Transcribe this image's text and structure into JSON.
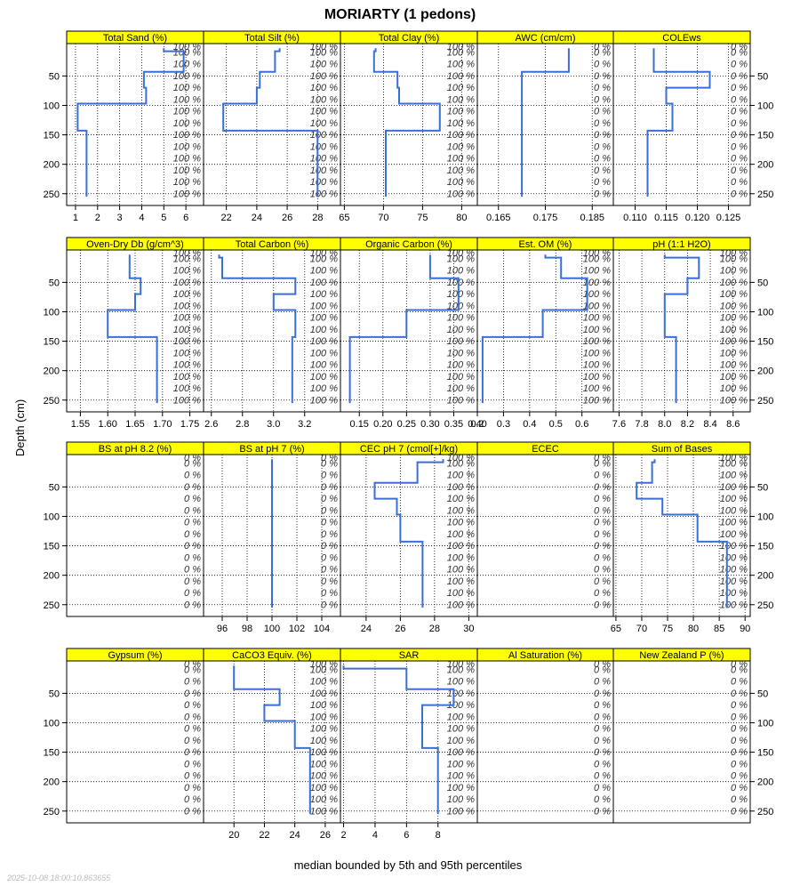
{
  "chart_data": {
    "type": "line",
    "title": "MORIARTY (1 pedons)",
    "ylabel": "Depth (cm)",
    "xlabel": "median bounded by 5th and 95th percentiles",
    "timestamp": "2025-10-08 18:00:10.863655",
    "grid": true,
    "depth_range": [
      270,
      -5
    ],
    "depth_ticks": [
      50,
      100,
      150,
      200,
      250
    ],
    "slice_depths": [
      0,
      10,
      30,
      50,
      70,
      90,
      110,
      130,
      150,
      170,
      190,
      210,
      230,
      250
    ],
    "colors": {
      "line": "#3b6fd8",
      "strip": "#ffff00",
      "grid": "#000000",
      "text": "#000000"
    },
    "panels": [
      {
        "name": "Total Sand (%)",
        "xlim": [
          0.6,
          6.8
        ],
        "ticks": [
          1,
          2,
          3,
          4,
          5,
          6
        ],
        "tick_labels": [
          "1",
          "2",
          "3",
          "4",
          "5",
          "6"
        ],
        "pct": "100 %",
        "line": [
          [
            5.0,
            3
          ],
          [
            5.0,
            8
          ],
          [
            5.9,
            8
          ],
          [
            5.9,
            43
          ],
          [
            4.1,
            43
          ],
          [
            4.1,
            70
          ],
          [
            4.2,
            70
          ],
          [
            4.2,
            97
          ],
          [
            1.1,
            97
          ],
          [
            1.1,
            143
          ],
          [
            1.5,
            143
          ],
          [
            1.5,
            255
          ]
        ]
      },
      {
        "name": "Total Silt (%)",
        "xlim": [
          20.5,
          29.5
        ],
        "ticks": [
          22,
          24,
          26,
          28
        ],
        "tick_labels": [
          "22",
          "24",
          "26",
          "28"
        ],
        "pct": "100 %",
        "line": [
          [
            25.5,
            3
          ],
          [
            25.5,
            8
          ],
          [
            25.2,
            8
          ],
          [
            25.2,
            43
          ],
          [
            24.2,
            43
          ],
          [
            24.2,
            70
          ],
          [
            24.0,
            70
          ],
          [
            24.0,
            97
          ],
          [
            21.8,
            97
          ],
          [
            21.8,
            143
          ],
          [
            28.0,
            143
          ],
          [
            28.0,
            255
          ]
        ]
      },
      {
        "name": "Total Clay (%)",
        "xlim": [
          64.5,
          82
        ],
        "ticks": [
          65,
          70,
          75,
          80
        ],
        "tick_labels": [
          "65",
          "70",
          "75",
          "80"
        ],
        "pct": "100 %",
        "line": [
          [
            69.0,
            3
          ],
          [
            69.0,
            8
          ],
          [
            68.8,
            8
          ],
          [
            68.8,
            43
          ],
          [
            71.8,
            43
          ],
          [
            71.8,
            70
          ],
          [
            72.0,
            70
          ],
          [
            72.0,
            97
          ],
          [
            77.2,
            97
          ],
          [
            77.2,
            143
          ],
          [
            70.3,
            143
          ],
          [
            70.3,
            255
          ]
        ]
      },
      {
        "name": "AWC (cm/cm)",
        "xlim": [
          0.1605,
          0.1895
        ],
        "ticks": [
          0.165,
          0.175,
          0.185
        ],
        "tick_labels": [
          "0.165",
          "0.175",
          "0.185"
        ],
        "pct": "0 %",
        "line": [
          [
            0.18,
            3
          ],
          [
            0.18,
            43
          ],
          [
            0.17,
            43
          ],
          [
            0.17,
            255
          ]
        ]
      },
      {
        "name": "COLEws",
        "xlim": [
          0.1065,
          0.1285
        ],
        "ticks": [
          0.11,
          0.115,
          0.12,
          0.125
        ],
        "tick_labels": [
          "0.110",
          "0.115",
          "0.120",
          "0.125"
        ],
        "pct": "0 %",
        "line": [
          [
            0.113,
            3
          ],
          [
            0.113,
            43
          ],
          [
            0.122,
            43
          ],
          [
            0.122,
            70
          ],
          [
            0.115,
            70
          ],
          [
            0.115,
            97
          ],
          [
            0.116,
            97
          ],
          [
            0.116,
            143
          ],
          [
            0.112,
            143
          ],
          [
            0.112,
            255
          ]
        ]
      },
      {
        "name": "Oven-Dry Db (g/cm^3)",
        "xlim": [
          1.525,
          1.775
        ],
        "ticks": [
          1.55,
          1.6,
          1.65,
          1.7,
          1.75
        ],
        "tick_labels": [
          "1.55",
          "1.60",
          "1.65",
          "1.70",
          "1.75"
        ],
        "pct": "100 %",
        "line": [
          [
            1.64,
            3
          ],
          [
            1.64,
            43
          ],
          [
            1.66,
            43
          ],
          [
            1.66,
            70
          ],
          [
            1.65,
            70
          ],
          [
            1.65,
            97
          ],
          [
            1.6,
            97
          ],
          [
            1.6,
            143
          ],
          [
            1.69,
            143
          ],
          [
            1.69,
            255
          ]
        ]
      },
      {
        "name": "Total Carbon (%)",
        "xlim": [
          2.55,
          3.43
        ],
        "ticks": [
          2.6,
          2.8,
          3.0,
          3.2
        ],
        "tick_labels": [
          "2.6",
          "2.8",
          "3.0",
          "3.2"
        ],
        "pct": "100 %",
        "line": [
          [
            2.65,
            3
          ],
          [
            2.65,
            8
          ],
          [
            2.67,
            8
          ],
          [
            2.67,
            43
          ],
          [
            3.14,
            43
          ],
          [
            3.14,
            70
          ],
          [
            3.0,
            70
          ],
          [
            3.0,
            97
          ],
          [
            3.14,
            97
          ],
          [
            3.14,
            143
          ],
          [
            3.12,
            143
          ],
          [
            3.12,
            255
          ]
        ]
      },
      {
        "name": "Organic Carbon (%)",
        "xlim": [
          0.11,
          0.4
        ],
        "ticks": [
          0.15,
          0.2,
          0.25,
          0.3,
          0.35,
          0.4
        ],
        "tick_labels": [
          "0.15",
          "0.20",
          "0.25",
          "0.30",
          "0.35",
          "0.40"
        ],
        "pct": "100 %",
        "line": [
          [
            0.3,
            3
          ],
          [
            0.3,
            43
          ],
          [
            0.36,
            43
          ],
          [
            0.36,
            97
          ],
          [
            0.25,
            97
          ],
          [
            0.25,
            143
          ],
          [
            0.13,
            143
          ],
          [
            0.13,
            255
          ]
        ]
      },
      {
        "name": "Est. OM (%)",
        "xlim": [
          0.2,
          0.72
        ],
        "ticks": [
          0.2,
          0.3,
          0.4,
          0.5,
          0.6
        ],
        "tick_labels": [
          "0.2",
          "0.3",
          "0.4",
          "0.5",
          "0.6"
        ],
        "pct": "100 %",
        "line": [
          [
            0.46,
            3
          ],
          [
            0.46,
            8
          ],
          [
            0.52,
            8
          ],
          [
            0.52,
            43
          ],
          [
            0.62,
            43
          ],
          [
            0.62,
            97
          ],
          [
            0.45,
            97
          ],
          [
            0.45,
            143
          ],
          [
            0.22,
            143
          ],
          [
            0.22,
            255
          ]
        ]
      },
      {
        "name": "pH (1:1 H2O)",
        "xlim": [
          7.55,
          8.75
        ],
        "ticks": [
          7.6,
          7.8,
          8.0,
          8.2,
          8.4,
          8.6
        ],
        "tick_labels": [
          "7.6",
          "7.8",
          "8.0",
          "8.2",
          "8.4",
          "8.6"
        ],
        "pct": "100 %",
        "line": [
          [
            8.0,
            3
          ],
          [
            8.0,
            8
          ],
          [
            8.3,
            8
          ],
          [
            8.3,
            43
          ],
          [
            8.2,
            43
          ],
          [
            8.2,
            70
          ],
          [
            8.0,
            70
          ],
          [
            8.0,
            143
          ],
          [
            8.1,
            143
          ],
          [
            8.1,
            255
          ]
        ]
      },
      {
        "name": "BS at pH 8.2 (%)",
        "xlim": [
          0,
          1
        ],
        "ticks": [],
        "tick_labels": [],
        "pct": "0 %",
        "line": []
      },
      {
        "name": "BS at pH 7 (%)",
        "xlim": [
          94.5,
          105.5
        ],
        "ticks": [
          96,
          98,
          100,
          102,
          104
        ],
        "tick_labels": [
          "96",
          "98",
          "100",
          "102",
          "104"
        ],
        "pct": "0 %",
        "line": [
          [
            100,
            3
          ],
          [
            100,
            255
          ]
        ]
      },
      {
        "name": "CEC pH 7 (cmol[+]/kg)",
        "xlim": [
          22.5,
          30.5
        ],
        "ticks": [
          24,
          26,
          28,
          30
        ],
        "tick_labels": [
          "24",
          "26",
          "28",
          "30"
        ],
        "pct": "100 %",
        "line": [
          [
            28.5,
            3
          ],
          [
            28.5,
            8
          ],
          [
            27.0,
            8
          ],
          [
            27.0,
            43
          ],
          [
            24.5,
            43
          ],
          [
            24.5,
            70
          ],
          [
            25.8,
            70
          ],
          [
            25.8,
            97
          ],
          [
            26.0,
            97
          ],
          [
            26.0,
            143
          ],
          [
            27.3,
            143
          ],
          [
            27.3,
            255
          ]
        ]
      },
      {
        "name": "ECEC",
        "xlim": [
          0,
          1
        ],
        "ticks": [],
        "tick_labels": [],
        "pct": "0 %",
        "line": []
      },
      {
        "name": "Sum of Bases",
        "xlim": [
          64.5,
          91
        ],
        "ticks": [
          65,
          70,
          75,
          80,
          85,
          90
        ],
        "tick_labels": [
          "65",
          "70",
          "75",
          "80",
          "85",
          "90"
        ],
        "pct": "100 %",
        "line": [
          [
            72.5,
            3
          ],
          [
            72.5,
            8
          ],
          [
            72.0,
            8
          ],
          [
            72.0,
            43
          ],
          [
            69.0,
            43
          ],
          [
            69.0,
            70
          ],
          [
            74.0,
            70
          ],
          [
            74.0,
            97
          ],
          [
            80.8,
            97
          ],
          [
            80.8,
            143
          ],
          [
            86.5,
            143
          ],
          [
            86.5,
            255
          ]
        ]
      },
      {
        "name": "Gypsum (%)",
        "xlim": [
          0,
          1
        ],
        "ticks": [],
        "tick_labels": [],
        "pct": "0 %",
        "line": []
      },
      {
        "name": "CaCO3 Equiv. (%)",
        "xlim": [
          18,
          27
        ],
        "ticks": [
          20,
          22,
          24,
          26
        ],
        "tick_labels": [
          "20",
          "22",
          "24",
          "26"
        ],
        "pct": "100 %",
        "line": [
          [
            20,
            3
          ],
          [
            20,
            43
          ],
          [
            23,
            43
          ],
          [
            23,
            70
          ],
          [
            22,
            70
          ],
          [
            22,
            97
          ],
          [
            24,
            97
          ],
          [
            24,
            143
          ],
          [
            25,
            143
          ],
          [
            25,
            255
          ]
        ]
      },
      {
        "name": "SAR",
        "xlim": [
          1.8,
          10.5
        ],
        "ticks": [
          2,
          4,
          6,
          8
        ],
        "tick_labels": [
          "2",
          "4",
          "6",
          "8"
        ],
        "pct": "100 %",
        "line": [
          [
            2,
            3
          ],
          [
            2,
            8
          ],
          [
            6,
            8
          ],
          [
            6,
            43
          ],
          [
            9,
            43
          ],
          [
            9,
            70
          ],
          [
            7,
            70
          ],
          [
            7,
            143
          ],
          [
            8,
            143
          ],
          [
            8,
            255
          ]
        ]
      },
      {
        "name": "Al Saturation (%)",
        "xlim": [
          0,
          1
        ],
        "ticks": [],
        "tick_labels": [],
        "pct": "0 %",
        "line": []
      },
      {
        "name": "New Zealand P (%)",
        "xlim": [
          0,
          1
        ],
        "ticks": [],
        "tick_labels": [],
        "pct": "0 %",
        "line": []
      }
    ]
  }
}
